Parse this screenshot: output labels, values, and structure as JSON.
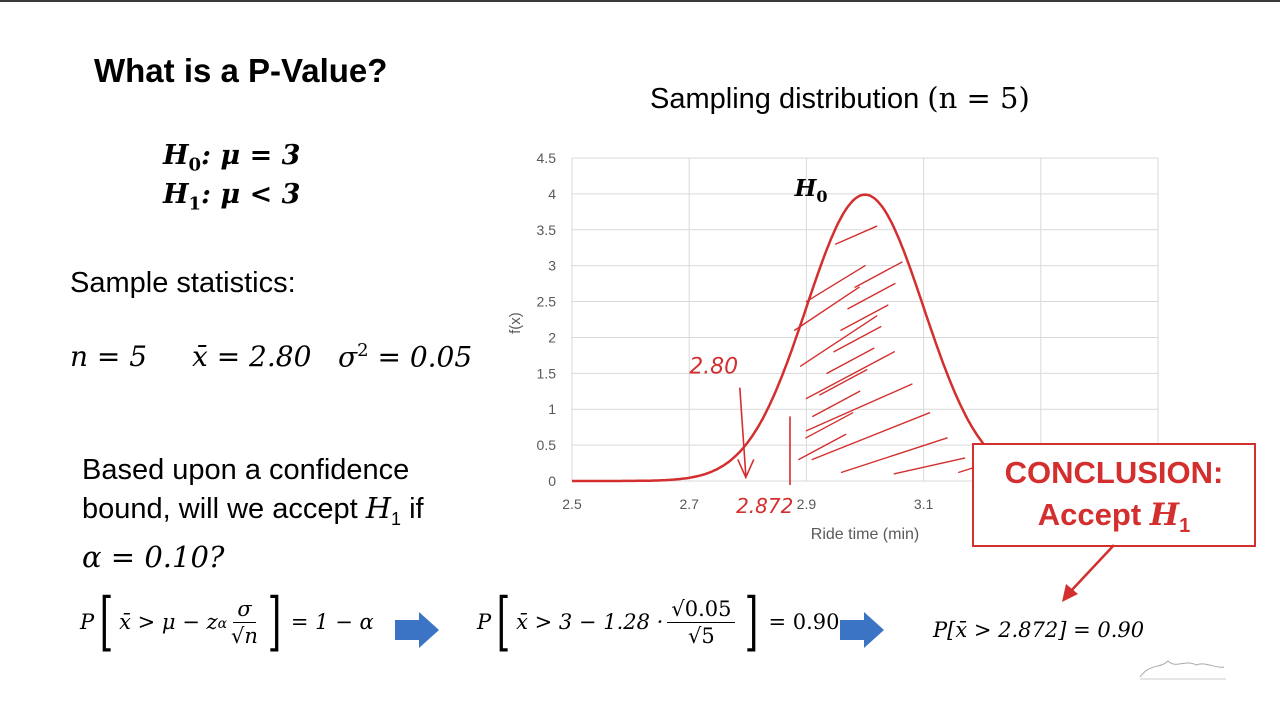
{
  "slide": {
    "title": "What is a P-Value?",
    "hypotheses": {
      "h0_label": "H",
      "h0_sub": "0",
      "h0_rest": ": μ = 3",
      "h1_label": "H",
      "h1_sub": "1",
      "h1_rest": ": μ < 3"
    },
    "sample_stats_label": "Sample statistics:",
    "stats": {
      "n": "n = 5",
      "xbar": "x̄ = 2.80",
      "sigma2_base": "σ",
      "sigma2_exp": "2",
      "sigma2_val": " = 0.05"
    },
    "question": {
      "line1": "Based upon a confidence",
      "line2a": "bound, will we accept ",
      "line2_var": "H",
      "line2_sub": "1",
      "line2b": " if",
      "line3": "α = 0.10?"
    },
    "chart_title_text": "Sampling distribution ",
    "chart_title_math": "(n = 5)",
    "formulas": {
      "f1_left": "P",
      "f1_inner": "x̄ > μ − z",
      "f1_sub": "α",
      "f1_num": "σ",
      "f1_den": "√n",
      "f1_right": "= 1 − α",
      "f2_left": "P",
      "f2_inner": "x̄ > 3 − 1.28 ·",
      "f2_num": "√0.05",
      "f2_den": "√5",
      "f2_right": "= 0.90",
      "f3": "P[x̄ > 2.872] = 0.90"
    },
    "conclusion": {
      "line1": "CONCLUSION:",
      "line2": "Accept ",
      "line2_var": "H",
      "line2_sub": "1"
    },
    "colors": {
      "curve": "#d32f2f",
      "annotation": "#d32f2f",
      "arrow": "#3b74c4",
      "grid": "#d9d9d9",
      "axis_text": "#595959"
    }
  },
  "chart_data": {
    "type": "line",
    "xlabel": "Ride time (min)",
    "ylabel": "f(x)",
    "xlim": [
      2.5,
      3.5
    ],
    "ylim": [
      0,
      4.5
    ],
    "x_ticks": [
      "2.5",
      "2.7",
      "2.9",
      "3.1"
    ],
    "y_ticks": [
      "0",
      "0.5",
      "1",
      "1.5",
      "2",
      "2.5",
      "3",
      "3.5",
      "4",
      "4.5"
    ],
    "series": [
      {
        "mean": 3.0,
        "sd": 0.1,
        "x_start": 2.5,
        "x_end": 3.5
      }
    ],
    "annotations": {
      "curve_label": "H",
      "curve_label_sub": "0",
      "observed": "2.80",
      "observed_x": 2.8,
      "bound": "2.872",
      "bound_x": 2.872
    },
    "grid": true
  }
}
